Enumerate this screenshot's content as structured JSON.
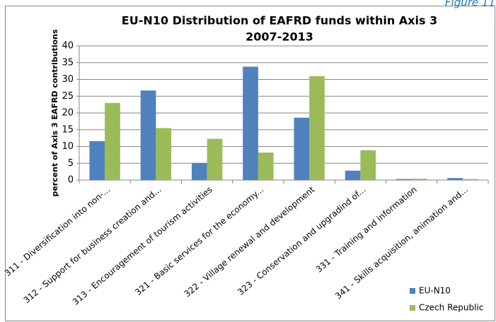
{
  "figure_label": "Figure 11",
  "chart_data": {
    "type": "bar",
    "title": "EU-N10 Distribution of EAFRD funds within Axis 3",
    "subtitle": "2007-2013",
    "y_label": "percent of Axis 3 EAFRD contributions",
    "categories": [
      "311 - Diversification into non-...",
      "312 - Support for business creation and...",
      "313 - Encouragement of tourism activities",
      "321 - Basic services for the economy...",
      "322 - Village renewal and development",
      "323 - Conservation and upgradind of...",
      "331 - Training and information",
      "341 - Skills acquisition, animation and..."
    ],
    "series": [
      {
        "name": "EU-N10",
        "color": "#4f81bd",
        "values": [
          11.6,
          26.7,
          5.1,
          33.8,
          18.6,
          2.8,
          0.3,
          0.6
        ]
      },
      {
        "name": "Czech Republic",
        "color": "#9bbb59",
        "values": [
          23.0,
          15.5,
          12.3,
          8.2,
          31.0,
          8.9,
          0.4,
          0.3
        ]
      }
    ],
    "ylim": [
      0,
      40
    ],
    "yticks": [
      0,
      5,
      10,
      15,
      20,
      25,
      30,
      35,
      40
    ],
    "grid": true,
    "legend": "bottom-right"
  }
}
